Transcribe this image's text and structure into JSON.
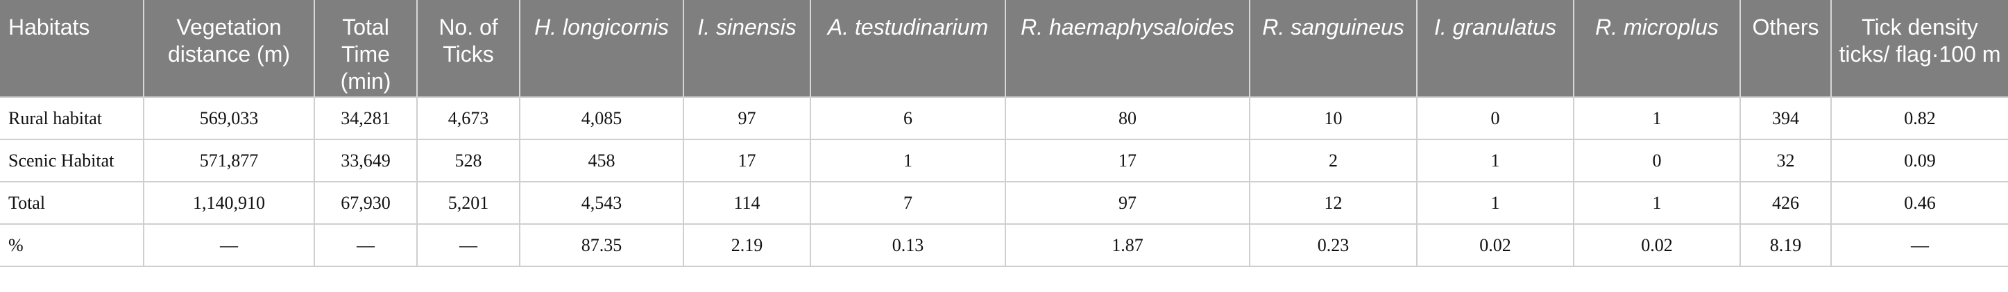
{
  "headers": [
    "Habitats",
    "Vegetation distance (m)",
    "Total Time (min)",
    "No. of Ticks",
    "H. longicornis",
    "I. sinensis",
    "A. testudinarium",
    "R. haemaphysaloides",
    "R. sanguineus",
    "I. granulatus",
    "R. microplus",
    "Others",
    "Tick density ticks/ flag·100 m"
  ],
  "rows": [
    [
      "Rural habitat",
      "569,033",
      "34,281",
      "4,673",
      "4,085",
      "97",
      "6",
      "80",
      "10",
      "0",
      "1",
      "394",
      "0.82"
    ],
    [
      "Scenic Habitat",
      "571,877",
      "33,649",
      "528",
      "458",
      "17",
      "1",
      "17",
      "2",
      "1",
      "0",
      "32",
      "0.09"
    ],
    [
      "Total",
      "1,140,910",
      "67,930",
      "5,201",
      "4,543",
      "114",
      "7",
      "97",
      "12",
      "1",
      "1",
      "426",
      "0.46"
    ],
    [
      "%",
      "—",
      "—",
      "—",
      "87.35",
      "2.19",
      "0.13",
      "1.87",
      "0.23",
      "0.02",
      "0.02",
      "8.19",
      "—"
    ]
  ]
}
